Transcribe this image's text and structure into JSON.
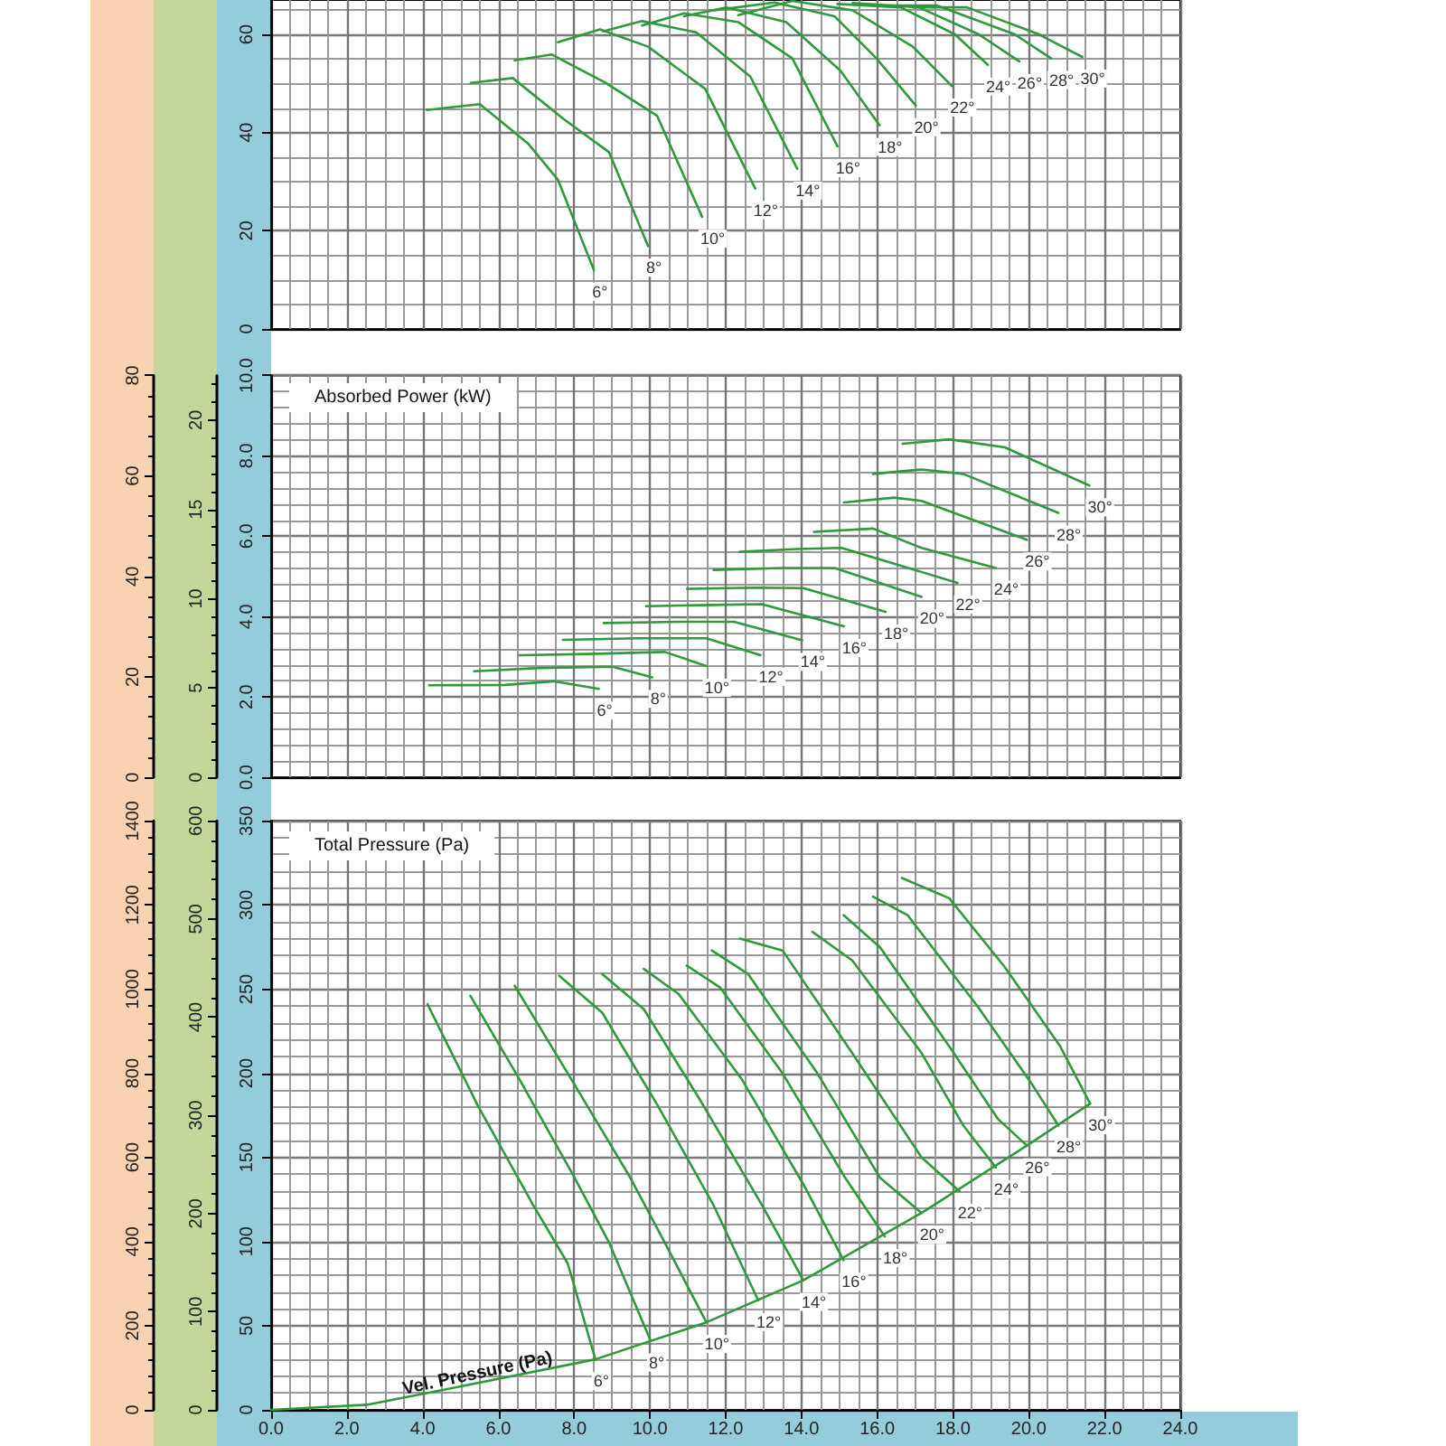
{
  "chart_data": [
    {
      "type": "line",
      "xlim": [
        0,
        24
      ],
      "xticks": [
        0,
        2,
        4,
        6,
        8,
        10,
        12,
        14,
        16,
        18,
        20,
        22,
        24
      ],
      "ylim": [
        0,
        67
      ],
      "yticks": [
        0,
        20,
        40,
        60
      ],
      "grid": true,
      "tick_labels": "y",
      "series": [
        {
          "name": "6°",
          "color": "#2e9a3a",
          "x": [
            4.11,
            5.51,
            6.78,
            7.57,
            8.52
          ],
          "values": [
            44.6,
            45.8,
            37.8,
            30.4,
            12.0
          ]
        },
        {
          "name": "8°",
          "color": "#2e9a3a",
          "x": [
            5.27,
            6.38,
            7.73,
            8.92,
            9.95
          ],
          "values": [
            50.1,
            51.1,
            42.7,
            36.0,
            16.9
          ]
        },
        {
          "name": "10°",
          "color": "#2e9a3a",
          "x": [
            6.43,
            7.41,
            8.84,
            10.19,
            11.38
          ],
          "values": [
            54.7,
            55.9,
            50.1,
            43.4,
            22.8
          ]
        },
        {
          "name": "12°",
          "color": "#2e9a3a",
          "x": [
            7.57,
            8.68,
            9.95,
            11.46,
            12.78
          ],
          "values": [
            58.4,
            61.0,
            57.5,
            48.9,
            28.6
          ]
        },
        {
          "name": "14°",
          "color": "#2e9a3a",
          "x": [
            8.76,
            9.79,
            11.22,
            12.65,
            13.89
          ],
          "values": [
            60.6,
            62.7,
            60.4,
            51.4,
            32.6
          ]
        },
        {
          "name": "16°",
          "color": "#2e9a3a",
          "x": [
            9.79,
            10.9,
            12.33,
            13.76,
            14.95
          ],
          "values": [
            61.8,
            64.3,
            62.5,
            55.1,
            37.2
          ]
        },
        {
          "name": "18°",
          "color": "#2e9a3a",
          "x": [
            10.9,
            12.02,
            13.6,
            15.03,
            16.06
          ],
          "values": [
            63.7,
            65.5,
            62.5,
            52.6,
            41.5
          ]
        },
        {
          "name": "20°",
          "color": "#2e9a3a",
          "x": [
            11.7,
            13.29,
            14.87,
            15.98,
            17.02
          ],
          "values": [
            64.9,
            66.5,
            63.7,
            55.1,
            45.5
          ]
        },
        {
          "name": "22°",
          "color": "#2e9a3a",
          "x": [
            12.33,
            13.76,
            15.35,
            16.94,
            17.97
          ],
          "values": [
            63.9,
            66.8,
            64.9,
            57.5,
            49.5
          ]
        },
        {
          "name": "24°",
          "color": "#2e9a3a",
          "x": [
            14.95,
            16.62,
            18.05,
            18.92
          ],
          "values": [
            66.2,
            65.5,
            60.0,
            53.8
          ]
        },
        {
          "name": "26°",
          "color": "#2e9a3a",
          "x": [
            15.35,
            17.1,
            18.68,
            19.75
          ],
          "values": [
            66.4,
            65.5,
            60.0,
            54.5
          ]
        },
        {
          "name": "28°",
          "color": "#2e9a3a",
          "x": [
            16.3,
            17.57,
            19.63,
            20.59
          ],
          "values": [
            65.9,
            65.9,
            60.0,
            55.1
          ]
        },
        {
          "name": "30°",
          "color": "#2e9a3a",
          "x": [
            16.94,
            18.37,
            20.27,
            21.41
          ],
          "values": [
            65.5,
            65.5,
            60.0,
            55.4
          ]
        }
      ]
    },
    {
      "type": "line",
      "title": "Absorbed Power (kW)",
      "xlim": [
        0,
        24
      ],
      "xticks": [
        0,
        2,
        4,
        6,
        8,
        10,
        12,
        14,
        16,
        18,
        20,
        22,
        24
      ],
      "ylim": [
        0,
        10
      ],
      "yticks": [
        {
          "value": 0,
          "label": "0.0"
        },
        {
          "value": 2,
          "label": "2.0"
        },
        {
          "value": 4,
          "label": "4.0"
        },
        {
          "value": 6,
          "label": "6.0"
        },
        {
          "value": 8,
          "label": "8.0"
        },
        {
          "value": 10,
          "label": "10.0"
        }
      ],
      "y2lim": [
        0,
        22.5
      ],
      "y2ticks": [
        0,
        5,
        10,
        15,
        20
      ],
      "y3lim": [
        0,
        80
      ],
      "y3ticks": [
        0,
        20,
        40,
        60,
        80
      ],
      "grid": true,
      "tick_labels": "y",
      "series": [
        {
          "name": "6°",
          "color": "#2e9a3a",
          "x": [
            4.17,
            6.18,
            7.46,
            8.65
          ],
          "values": [
            2.29,
            2.3,
            2.39,
            2.2
          ]
        },
        {
          "name": "8°",
          "color": "#2e9a3a",
          "x": [
            5.36,
            7.1,
            9.02,
            10.06
          ],
          "values": [
            2.64,
            2.72,
            2.75,
            2.49
          ]
        },
        {
          "name": "10°",
          "color": "#2e9a3a",
          "x": [
            6.55,
            8.38,
            10.39,
            11.49
          ],
          "values": [
            3.04,
            3.07,
            3.12,
            2.77
          ]
        },
        {
          "name": "12°",
          "color": "#2e9a3a",
          "x": [
            7.7,
            9.66,
            11.49,
            12.92
          ],
          "values": [
            3.42,
            3.46,
            3.46,
            3.04
          ]
        },
        {
          "name": "14°",
          "color": "#2e9a3a",
          "x": [
            8.78,
            10.76,
            12.22,
            14.02
          ],
          "values": [
            3.84,
            3.87,
            3.87,
            3.41
          ]
        },
        {
          "name": "16°",
          "color": "#2e9a3a",
          "x": [
            9.9,
            11.67,
            12.95,
            15.12
          ],
          "values": [
            4.26,
            4.29,
            4.31,
            3.76
          ]
        },
        {
          "name": "18°",
          "color": "#2e9a3a",
          "x": [
            10.98,
            12.77,
            14.05,
            16.22
          ],
          "values": [
            4.69,
            4.72,
            4.71,
            4.12
          ]
        },
        {
          "name": "20°",
          "color": "#2e9a3a",
          "x": [
            11.68,
            13.5,
            14.88,
            17.17
          ],
          "values": [
            5.16,
            5.21,
            5.21,
            4.49
          ]
        },
        {
          "name": "22°",
          "color": "#2e9a3a",
          "x": [
            12.37,
            13.87,
            15.06,
            18.12
          ],
          "values": [
            5.61,
            5.68,
            5.71,
            4.84
          ]
        },
        {
          "name": "24°",
          "color": "#2e9a3a",
          "x": [
            14.33,
            15.89,
            17.17,
            19.13
          ],
          "values": [
            6.11,
            6.19,
            5.71,
            5.21
          ]
        },
        {
          "name": "26°",
          "color": "#2e9a3a",
          "x": [
            15.12,
            16.44,
            17.17,
            19.95
          ],
          "values": [
            6.84,
            6.96,
            6.88,
            5.91
          ]
        },
        {
          "name": "28°",
          "color": "#2e9a3a",
          "x": [
            15.89,
            17.17,
            18.27,
            20.78
          ],
          "values": [
            7.55,
            7.66,
            7.55,
            6.58
          ]
        },
        {
          "name": "30°",
          "color": "#2e9a3a",
          "x": [
            16.67,
            17.9,
            19.37,
            21.6
          ],
          "values": [
            8.3,
            8.41,
            8.21,
            7.26
          ]
        }
      ]
    },
    {
      "type": "line",
      "title": "Total Pressure (Pa)",
      "xlim": [
        0,
        24
      ],
      "xticks": [
        {
          "value": 0,
          "label": "0.0"
        },
        {
          "value": 2,
          "label": "2.0"
        },
        {
          "value": 4,
          "label": "4.0"
        },
        {
          "value": 6,
          "label": "6.0"
        },
        {
          "value": 8,
          "label": "8.0"
        },
        {
          "value": 10,
          "label": "10.0"
        },
        {
          "value": 12,
          "label": "12.0"
        },
        {
          "value": 14,
          "label": "14.0"
        },
        {
          "value": 16,
          "label": "16.0"
        },
        {
          "value": 18,
          "label": "18.0"
        },
        {
          "value": 20,
          "label": "20.0"
        },
        {
          "value": 22,
          "label": "22.0"
        },
        {
          "value": 24,
          "label": "24.0"
        }
      ],
      "ylim": [
        0,
        350
      ],
      "yticks": [
        0,
        50,
        100,
        150,
        200,
        250,
        300,
        350
      ],
      "y2lim": [
        0,
        600
      ],
      "y2ticks": [
        0,
        100,
        200,
        300,
        400,
        500,
        600
      ],
      "y3lim": [
        0,
        1400
      ],
      "y3ticks": [
        0,
        200,
        400,
        600,
        800,
        1000,
        1200,
        1400
      ],
      "grid": true,
      "annotations": [
        {
          "text": "Vel. Pressure (Pa)",
          "x": 5.5,
          "y": 16
        }
      ],
      "series": [
        {
          "name": "6°",
          "color": "#2e9a3a",
          "x": [
            4.13,
            5.45,
            6.91,
            7.83,
            8.56
          ],
          "values": [
            241,
            181,
            122,
            87,
            30
          ]
        },
        {
          "name": "8°",
          "color": "#2e9a3a",
          "x": [
            5.26,
            6.54,
            8.01,
            8.93,
            10.02
          ],
          "values": [
            246,
            197,
            138,
            99,
            41
          ]
        },
        {
          "name": "10°",
          "color": "#2e9a3a",
          "x": [
            6.43,
            7.83,
            9.48,
            10.4,
            11.49
          ],
          "values": [
            252,
            200,
            138,
            99,
            52
          ]
        },
        {
          "name": "12°",
          "color": "#2e9a3a",
          "x": [
            7.6,
            8.74,
            10.2,
            11.67,
            12.86
          ],
          "values": [
            258,
            236,
            181,
            122,
            65
          ]
        },
        {
          "name": "14°",
          "color": "#2e9a3a",
          "x": [
            8.74,
            9.84,
            11.3,
            12.95,
            14.05
          ],
          "values": [
            259,
            238,
            185,
            122,
            77
          ]
        },
        {
          "name": "16°",
          "color": "#2e9a3a",
          "x": [
            9.84,
            10.76,
            12.41,
            14.05,
            15.11
          ],
          "values": [
            262,
            247,
            197,
            134,
            89
          ]
        },
        {
          "name": "18°",
          "color": "#2e9a3a",
          "x": [
            10.97,
            11.85,
            13.5,
            15.15,
            16.2
          ],
          "values": [
            264,
            251,
            200,
            138,
            103
          ]
        },
        {
          "name": "20°",
          "color": "#2e9a3a",
          "x": [
            11.63,
            12.59,
            14.42,
            16.07,
            17.17
          ],
          "values": [
            273,
            259,
            200,
            138,
            117
          ]
        },
        {
          "name": "22°",
          "color": "#2e9a3a",
          "x": [
            12.37,
            13.5,
            15.34,
            17.17,
            18.17
          ],
          "values": [
            280,
            273,
            212,
            150,
            130
          ]
        },
        {
          "name": "24°",
          "color": "#2e9a3a",
          "x": [
            14.29,
            15.34,
            17.17,
            18.27,
            19.13
          ],
          "values": [
            284,
            267,
            212,
            169,
            144
          ]
        },
        {
          "name": "26°",
          "color": "#2e9a3a",
          "x": [
            15.11,
            16.07,
            17.9,
            19.18,
            19.95
          ],
          "values": [
            294,
            275,
            216,
            173,
            157
          ]
        },
        {
          "name": "28°",
          "color": "#2e9a3a",
          "x": [
            15.89,
            16.8,
            18.64,
            20.1,
            20.78
          ],
          "values": [
            305,
            294,
            240,
            193,
            169
          ]
        },
        {
          "name": "30°",
          "color": "#2e9a3a",
          "x": [
            16.65,
            17.9,
            19.37,
            20.83,
            21.62
          ],
          "values": [
            316,
            304,
            263,
            216,
            182
          ]
        },
        {
          "color": "#2e9a3a",
          "x": [
            0,
            2.52,
            4.35,
            8.56,
            11.49,
            14.05,
            17.17,
            19.95,
            21.62
          ],
          "values": [
            0,
            3,
            11,
            30,
            52,
            77,
            117,
            157,
            182
          ]
        }
      ]
    }
  ]
}
